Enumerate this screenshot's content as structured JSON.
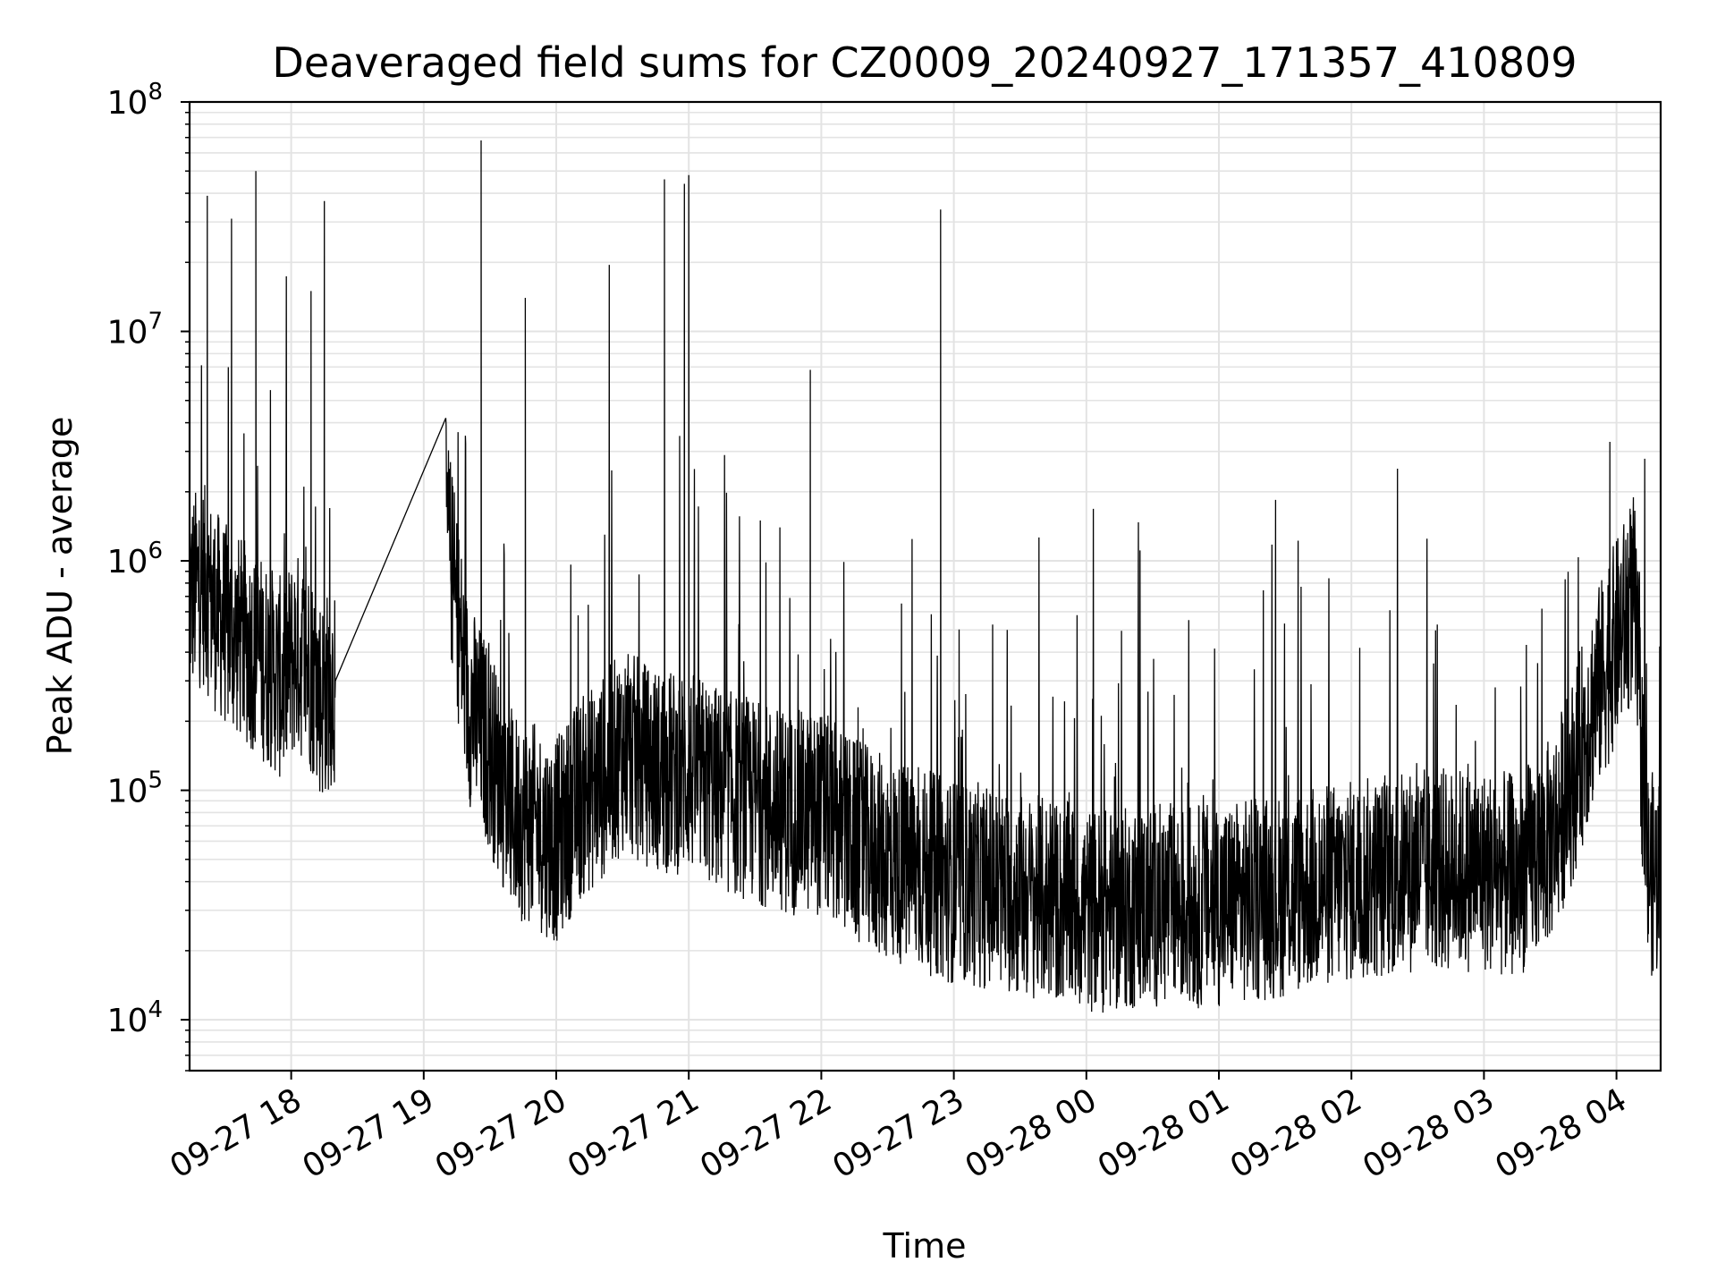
{
  "chart_data": {
    "type": "line",
    "title": "Deaveraged field sums for CZ0009_20240927_171357_410809",
    "xlabel": "Time",
    "ylabel": "Peak ADU - average",
    "x_scale": "time",
    "y_scale": "log",
    "xlim": [
      "2024-09-27 17:14",
      "2024-09-28 04:20"
    ],
    "ylim": [
      6000,
      100000000
    ],
    "grid": true,
    "legend": "none",
    "line_color": "#000000",
    "x_ticks": [
      "09-27 18",
      "09-27 19",
      "09-27 20",
      "09-27 21",
      "09-27 22",
      "09-27 23",
      "09-28 00",
      "09-28 01",
      "09-28 02",
      "09-28 03",
      "09-28 04"
    ],
    "y_ticks": [
      {
        "value": 10000,
        "base": "10",
        "exp": "4"
      },
      {
        "value": 100000,
        "base": "10",
        "exp": "5"
      },
      {
        "value": 1000000,
        "base": "10",
        "exp": "6"
      },
      {
        "value": 10000000,
        "base": "10",
        "exp": "7"
      },
      {
        "value": 100000000,
        "base": "10",
        "exp": "8"
      }
    ],
    "series": [
      {
        "x": [
          "2024-09-27 17:14",
          "2024-09-27 17:20",
          "2024-09-27 17:26",
          "2024-09-27 17:32",
          "2024-09-27 17:38",
          "2024-09-27 17:44",
          "2024-09-27 17:50",
          "2024-09-27 17:56",
          "2024-09-27 18:02",
          "2024-09-27 18:08",
          "2024-09-27 18:14",
          "2024-09-27 18:20",
          "2024-09-27 19:10",
          "2024-09-27 19:20",
          "2024-09-27 19:30",
          "2024-09-27 19:40",
          "2024-09-27 19:50",
          "2024-09-27 20:00",
          "2024-09-27 20:10",
          "2024-09-27 20:20",
          "2024-09-27 20:30",
          "2024-09-27 20:40",
          "2024-09-27 20:50",
          "2024-09-27 21:00",
          "2024-09-27 21:15",
          "2024-09-27 21:30",
          "2024-09-27 21:45",
          "2024-09-27 22:00",
          "2024-09-27 22:15",
          "2024-09-27 22:30",
          "2024-09-27 22:45",
          "2024-09-27 23:00",
          "2024-09-27 23:15",
          "2024-09-27 23:30",
          "2024-09-27 23:45",
          "2024-09-28 00:00",
          "2024-09-28 00:15",
          "2024-09-28 00:30",
          "2024-09-28 00:45",
          "2024-09-28 01:00",
          "2024-09-28 01:15",
          "2024-09-28 01:30",
          "2024-09-28 01:45",
          "2024-09-28 02:00",
          "2024-09-28 02:15",
          "2024-09-28 02:30",
          "2024-09-28 02:45",
          "2024-09-28 03:00",
          "2024-09-28 03:15",
          "2024-09-28 03:30",
          "2024-09-28 03:40",
          "2024-09-28 03:50",
          "2024-09-28 04:00",
          "2024-09-28 04:08",
          "2024-09-28 04:14",
          "2024-09-28 04:20"
        ],
        "y": [
          700000,
          800000,
          600000,
          500000,
          450000,
          400000,
          350000,
          300000,
          400000,
          350000,
          250000,
          300000,
          1500000,
          250000,
          150000,
          80000,
          70000,
          60000,
          90000,
          110000,
          150000,
          130000,
          120000,
          120000,
          100000,
          90000,
          80000,
          80000,
          60000,
          50000,
          45000,
          40000,
          38000,
          35000,
          33000,
          30000,
          30000,
          32000,
          31000,
          32000,
          33000,
          35000,
          38000,
          40000,
          42000,
          45000,
          45000,
          45000,
          42000,
          60000,
          110000,
          250000,
          450000,
          700000,
          45000,
          40000
        ]
      },
      {
        "x": [
          "2024-09-27 17:22",
          "2024-09-27 17:33",
          "2024-09-27 17:44",
          "2024-09-27 18:09",
          "2024-09-27 18:15",
          "2024-09-27 19:26",
          "2024-09-27 19:46",
          "2024-09-27 20:24",
          "2024-09-27 20:49",
          "2024-09-27 20:58",
          "2024-09-27 21:00",
          "2024-09-27 21:55",
          "2024-09-27 22:54",
          "2024-09-28 03:57"
        ],
        "y": [
          39000000,
          31000000,
          50000000,
          15000000,
          37000000,
          68000000,
          14000000,
          19500000,
          46000000,
          44000000,
          48000000,
          6800000,
          34000000,
          3300000
        ]
      }
    ]
  }
}
